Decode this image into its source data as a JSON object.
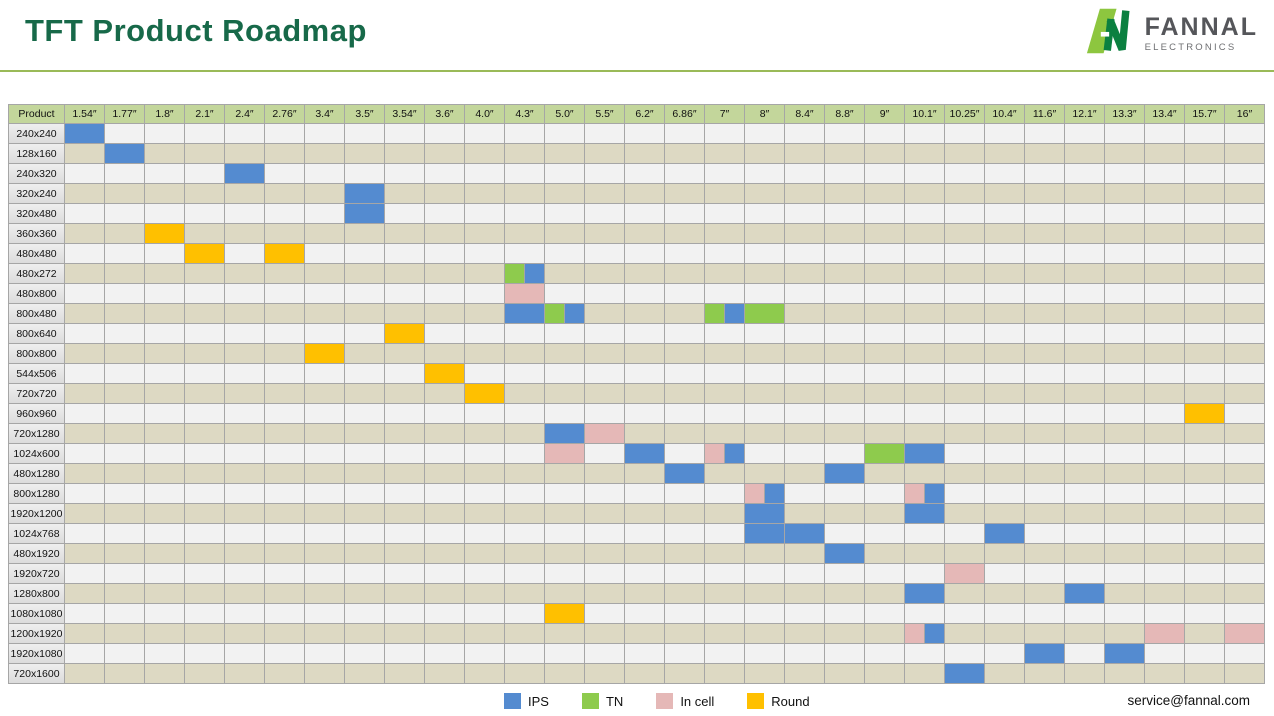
{
  "page": {
    "title": "TFT Product Roadmap",
    "email": "service@fannal.com"
  },
  "logo": {
    "name": "FANNAL",
    "subtitle": "ELECTRONICS"
  },
  "colors": {
    "ips": "#548bd0",
    "tn": "#8ecb4d",
    "incell": "#e5b8b7",
    "round": "#ffc000",
    "grid": "#a6a6a6",
    "header_bg": "#c3d69b",
    "row_odd": "#f2f2f2",
    "row_even": "#ddd9c3",
    "title_green": "#176949",
    "divider_green": "#9aba58",
    "logo_light_green": "#8dc63f",
    "logo_dark_green": "#0b8040"
  },
  "chart_data": {
    "type": "heatmap",
    "title": "TFT Product Roadmap",
    "corner_label": "Product",
    "legend_position": "bottom-center",
    "legend": [
      {
        "key": "ips",
        "label": "IPS"
      },
      {
        "key": "tn",
        "label": "TN"
      },
      {
        "key": "incell",
        "label": "In cell"
      },
      {
        "key": "round",
        "label": "Round"
      }
    ],
    "columns": [
      "1.54″",
      "1.77″",
      "1.8″",
      "2.1″",
      "2.4″",
      "2.76″",
      "3.4″",
      "3.5″",
      "3.54″",
      "3.6″",
      "4.0″",
      "4.3″",
      "5.0″",
      "5.5″",
      "6.2″",
      "6.86″",
      "7″",
      "8″",
      "8.4″",
      "8.8″",
      "9″",
      "10.1″",
      "10.25″",
      "10.4″",
      "11.6″",
      "12.1″",
      "13.3″",
      "13.4″",
      "15.7″",
      "16″"
    ],
    "rows": [
      {
        "product": "240x240",
        "cells": {
          "1.54″": [
            "ips"
          ]
        }
      },
      {
        "product": "128x160",
        "cells": {
          "1.77″": [
            "ips"
          ]
        }
      },
      {
        "product": "240x320",
        "cells": {
          "2.4″": [
            "ips"
          ]
        }
      },
      {
        "product": "320x240",
        "cells": {
          "3.5″": [
            "ips"
          ]
        }
      },
      {
        "product": "320x480",
        "cells": {
          "3.5″": [
            "ips"
          ]
        }
      },
      {
        "product": "360x360",
        "cells": {
          "1.8″": [
            "round"
          ]
        }
      },
      {
        "product": "480x480",
        "cells": {
          "2.1″": [
            "round"
          ],
          "2.76″": [
            "round"
          ]
        }
      },
      {
        "product": "480x272",
        "cells": {
          "4.3″": [
            "tn",
            "ips"
          ]
        }
      },
      {
        "product": "480x800",
        "cells": {
          "4.3″": [
            "incell"
          ]
        }
      },
      {
        "product": "800x480",
        "cells": {
          "4.3″": [
            "ips"
          ],
          "5.0″": [
            "tn",
            "ips"
          ],
          "7″": [
            "tn",
            "ips"
          ],
          "8″": [
            "tn"
          ]
        }
      },
      {
        "product": "800x640",
        "cells": {
          "3.54″": [
            "round"
          ]
        }
      },
      {
        "product": "800x800",
        "cells": {
          "3.4″": [
            "round"
          ]
        }
      },
      {
        "product": "544x506",
        "cells": {
          "3.6″": [
            "round"
          ]
        }
      },
      {
        "product": "720x720",
        "cells": {
          "4.0″": [
            "round"
          ]
        }
      },
      {
        "product": "960x960",
        "cells": {
          "15.7″": [
            "round"
          ]
        }
      },
      {
        "product": "720x1280",
        "cells": {
          "5.0″": [
            "ips"
          ],
          "5.5″": [
            "incell"
          ]
        }
      },
      {
        "product": "1024x600",
        "cells": {
          "5.0″": [
            "incell"
          ],
          "6.2″": [
            "ips"
          ],
          "7″": [
            "incell",
            "ips"
          ],
          "9″": [
            "tn"
          ],
          "10.1″": [
            "ips"
          ]
        }
      },
      {
        "product": "480x1280",
        "cells": {
          "6.86″": [
            "ips"
          ],
          "8.8″": [
            "ips"
          ]
        }
      },
      {
        "product": "800x1280",
        "cells": {
          "8″": [
            "incell",
            "ips"
          ],
          "10.1″": [
            "incell",
            "ips"
          ]
        }
      },
      {
        "product": "1920x1200",
        "cells": {
          "8″": [
            "ips"
          ],
          "10.1″": [
            "ips"
          ]
        }
      },
      {
        "product": "1024x768",
        "cells": {
          "8″": [
            "ips"
          ],
          "8.4″": [
            "ips"
          ],
          "10.4″": [
            "ips"
          ]
        }
      },
      {
        "product": "480x1920",
        "cells": {
          "8.8″": [
            "ips"
          ]
        }
      },
      {
        "product": "1920x720",
        "cells": {
          "10.25″": [
            "incell"
          ]
        }
      },
      {
        "product": "1280x800",
        "cells": {
          "10.1″": [
            "ips"
          ],
          "12.1″": [
            "ips"
          ]
        }
      },
      {
        "product": "1080x1080",
        "cells": {
          "5.0″": [
            "round"
          ]
        }
      },
      {
        "product": "1200x1920",
        "cells": {
          "10.1″": [
            "incell",
            "ips"
          ],
          "13.4″": [
            "incell"
          ],
          "16″": [
            "incell"
          ]
        }
      },
      {
        "product": "1920x1080",
        "cells": {
          "11.6″": [
            "ips"
          ],
          "13.3″": [
            "ips"
          ]
        }
      },
      {
        "product": "720x1600",
        "cells": {
          "10.25″": [
            "ips"
          ]
        }
      }
    ]
  }
}
